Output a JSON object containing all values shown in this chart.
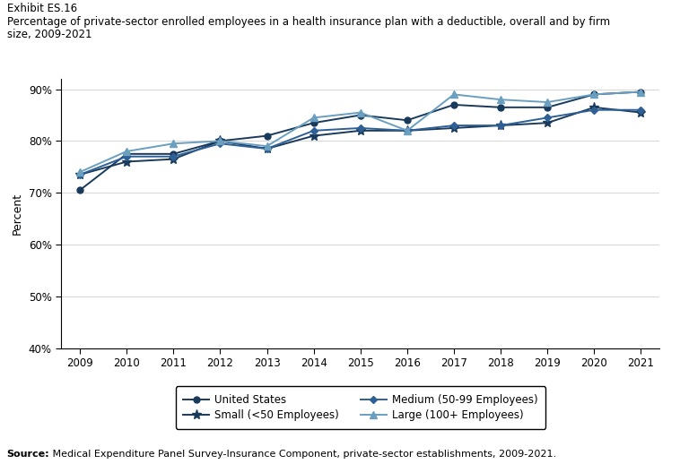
{
  "years": [
    2009,
    2010,
    2011,
    2012,
    2013,
    2014,
    2015,
    2016,
    2017,
    2018,
    2019,
    2020,
    2021
  ],
  "united_states": [
    70.5,
    77.5,
    77.5,
    80.0,
    81.0,
    83.5,
    85.0,
    84.0,
    87.0,
    86.5,
    86.5,
    89.0,
    89.5
  ],
  "small": [
    73.5,
    76.0,
    76.5,
    80.0,
    78.5,
    81.0,
    82.0,
    82.0,
    82.5,
    83.0,
    83.5,
    86.5,
    85.5
  ],
  "medium": [
    73.5,
    77.0,
    77.0,
    79.5,
    78.5,
    82.0,
    82.5,
    82.0,
    83.0,
    83.0,
    84.5,
    86.0,
    86.0
  ],
  "large": [
    74.0,
    78.0,
    79.5,
    80.0,
    79.0,
    84.5,
    85.5,
    82.0,
    89.0,
    88.0,
    87.5,
    89.0,
    89.5
  ],
  "color_us": "#1a3a5c",
  "color_small": "#1a3a5c",
  "color_medium": "#2e6096",
  "color_large": "#6a9fc0",
  "ylabel": "Percent",
  "ylim": [
    40,
    92
  ],
  "yticks": [
    40,
    50,
    60,
    70,
    80,
    90
  ],
  "exhibit_label": "Exhibit ES.16",
  "title_line1": "Percentage of private-sector enrolled employees in a health insurance plan with a deductible, overall and by firm",
  "title_line2": "size, 2009-2021",
  "source_bold": "Source:",
  "source_rest": " Medical Expenditure Panel Survey-Insurance Component, private-sector establishments, 2009-2021.",
  "legend_entries": [
    "United States",
    "Small (<50 Employees)",
    "Medium (50-99 Employees)",
    "Large (100+ Employees)"
  ]
}
